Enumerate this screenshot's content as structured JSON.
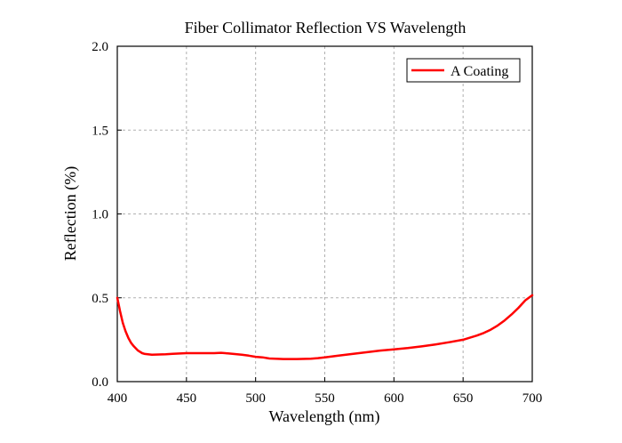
{
  "chart_data": {
    "type": "line",
    "title": "Fiber Collimator Reflection VS Wavelength",
    "xlabel": "Wavelength (nm)",
    "ylabel": "Reflection (%)",
    "xlim": [
      400,
      700
    ],
    "ylim": [
      0.0,
      2.0
    ],
    "xticks": [
      400,
      450,
      500,
      550,
      600,
      650,
      700
    ],
    "xtick_labels": [
      "400",
      "450",
      "500",
      "550",
      "600",
      "650",
      "700"
    ],
    "yticks": [
      0.0,
      0.5,
      1.0,
      1.5,
      2.0
    ],
    "ytick_labels": [
      "0.0",
      "0.5",
      "1.0",
      "1.5",
      "2.0"
    ],
    "grid": true,
    "legend_position": "top-right",
    "series": [
      {
        "name": "A Coating",
        "color": "#ff0000",
        "x": [
          400,
          402,
          404,
          406,
          408,
          410,
          412,
          415,
          418,
          420,
          425,
          430,
          435,
          440,
          450,
          460,
          470,
          475,
          480,
          490,
          495,
          500,
          505,
          510,
          520,
          530,
          540,
          545,
          550,
          560,
          570,
          580,
          590,
          600,
          610,
          620,
          630,
          640,
          650,
          660,
          665,
          670,
          675,
          680,
          685,
          690,
          695,
          700
        ],
        "y": [
          0.5,
          0.42,
          0.35,
          0.3,
          0.26,
          0.23,
          0.21,
          0.185,
          0.17,
          0.165,
          0.16,
          0.162,
          0.163,
          0.166,
          0.17,
          0.17,
          0.17,
          0.172,
          0.168,
          0.16,
          0.155,
          0.148,
          0.145,
          0.138,
          0.135,
          0.135,
          0.137,
          0.14,
          0.145,
          0.155,
          0.165,
          0.175,
          0.185,
          0.192,
          0.2,
          0.21,
          0.222,
          0.235,
          0.25,
          0.275,
          0.29,
          0.31,
          0.335,
          0.365,
          0.4,
          0.44,
          0.485,
          0.515
        ]
      }
    ]
  }
}
